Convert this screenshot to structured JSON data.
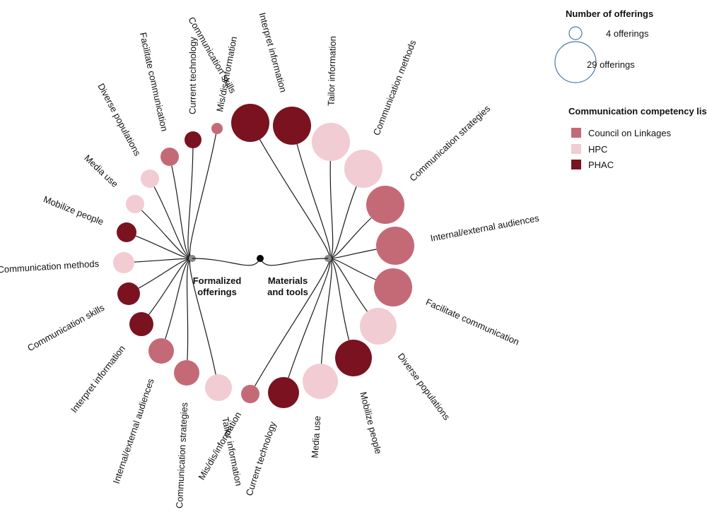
{
  "colors": {
    "council": "#c46a77",
    "hpc": "#f1ccd2",
    "phac": "#7a1220",
    "size_legend_stroke": "#4a78a8",
    "hub": "#8a8a8a",
    "root": "#000000"
  },
  "size_legend": {
    "title": "Number of offerings",
    "small_label": "4 offerings",
    "small_value": 4,
    "large_label": "29 offerings",
    "large_value": 29
  },
  "color_legend": {
    "title": "Communication competency list",
    "items": [
      {
        "key": "council",
        "label": "Council on Linkages"
      },
      {
        "key": "hpc",
        "label": "HPC"
      },
      {
        "key": "phac",
        "label": "PHAC"
      }
    ]
  },
  "groups": {
    "left": {
      "line1": "Formalized",
      "line2": "offerings",
      "nodes": [
        {
          "label": "Mis/dis/information",
          "type": "council"
        },
        {
          "label": "Current technology",
          "type": "phac"
        },
        {
          "label": "Facilitate communication",
          "type": "council"
        },
        {
          "label": "Diverse populations",
          "type": "hpc"
        },
        {
          "label": "Media use",
          "type": "hpc"
        },
        {
          "label": "Mobilize people",
          "type": "phac"
        },
        {
          "label": "Communication methods",
          "type": "hpc"
        },
        {
          "label": "Communication skills",
          "type": "phac"
        },
        {
          "label": "Interpret information",
          "type": "phac"
        },
        {
          "label": "Internal/external audiences",
          "type": "council"
        },
        {
          "label": "Communication strategies",
          "type": "council"
        },
        {
          "label": "Tailor information",
          "type": "hpc"
        }
      ]
    },
    "right": {
      "line1": "Materials",
      "line2": "and tools",
      "nodes": [
        {
          "label": "Communication skills",
          "type": "phac"
        },
        {
          "label": "Interpret information",
          "type": "phac"
        },
        {
          "label": "Tailor information",
          "type": "hpc"
        },
        {
          "label": "Communication methods",
          "type": "hpc"
        },
        {
          "label": "Communication strategies",
          "type": "council"
        },
        {
          "label": "Internal/external audiences",
          "type": "council"
        },
        {
          "label": "Facilitate communication",
          "type": "council"
        },
        {
          "label": "Diverse populations",
          "type": "hpc"
        },
        {
          "label": "Mobilize people",
          "type": "phac"
        },
        {
          "label": "Media use",
          "type": "hpc"
        },
        {
          "label": "Current technology",
          "type": "phac"
        },
        {
          "label": "Mis/dis/information",
          "type": "council"
        }
      ]
    }
  }
}
